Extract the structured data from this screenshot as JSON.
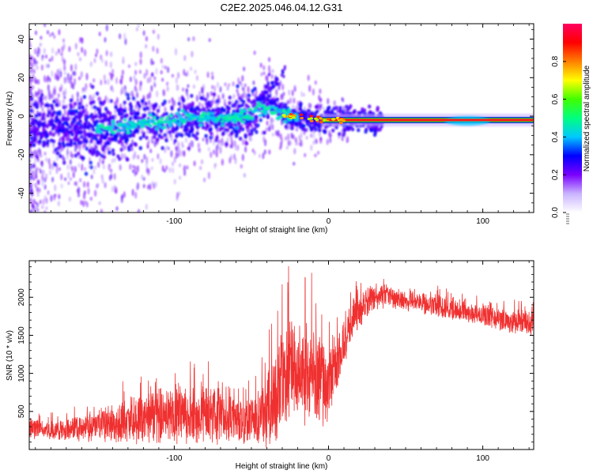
{
  "figure": {
    "title": "C2E2.2025.046.04.12.G31"
  },
  "chart_data": [
    {
      "type": "heatmap",
      "xlabel": "Height of straight line (km)",
      "ylabel": "Frequency (Hz)",
      "xlim": [
        -194,
        133
      ],
      "ylim": [
        -50,
        48
      ],
      "xticks": [
        -100,
        0,
        100
      ],
      "yticks": [
        -40,
        -20,
        0,
        20,
        40
      ],
      "xtick_labels": [
        "-100",
        "0",
        "100"
      ],
      "ytick_labels": [
        "-40",
        "-20",
        "0",
        "20",
        "40"
      ],
      "grid": false,
      "ridge_x": [
        -194,
        -175,
        -155,
        -135,
        -115,
        -100,
        -90,
        -80,
        -70,
        -60,
        -50,
        -45,
        -40,
        -35,
        -30,
        -25,
        -20,
        -10,
        0,
        10,
        30,
        60,
        80,
        90,
        100,
        110,
        133
      ],
      "ridge_y": [
        -6,
        -5,
        -7,
        -6,
        -3,
        -3,
        -1,
        -1,
        -2,
        -1,
        2,
        4,
        4,
        3,
        1,
        0,
        -1,
        -1,
        -2,
        -2,
        -2,
        -2,
        -2,
        -3,
        -2,
        -2,
        -2
      ],
      "stable_line": {
        "x_start": -5,
        "x_end": 133,
        "y": -2
      },
      "colorbar": {
        "label": "Normalized spectral amplitude",
        "range": [
          0,
          1
        ],
        "ticks": [
          0.0,
          0.2,
          0.4,
          0.6,
          0.8
        ],
        "tick_labels": [
          "0.0",
          "0.2",
          "0.4",
          "0.6",
          "0.8"
        ],
        "colors": [
          "#ffffff",
          "#c9b3ff",
          "#7a00ff",
          "#0000ff",
          "#00c8ff",
          "#00ff80",
          "#40ff00",
          "#ffff00",
          "#ff8000",
          "#ff0000",
          "#ff0060"
        ]
      }
    },
    {
      "type": "line",
      "xlabel": "Height of straight line (km)",
      "ylabel": "SNR (10 * v/v)",
      "xlim": [
        -194,
        133
      ],
      "ylim": [
        0,
        2480
      ],
      "xticks": [
        -100,
        0,
        100
      ],
      "yticks": [
        500,
        1000,
        1500,
        2000
      ],
      "xtick_labels": [
        "-100",
        "0",
        "100"
      ],
      "ytick_labels": [
        "500",
        "1000",
        "1500",
        "2000"
      ],
      "grid": false,
      "color": "#f03030",
      "envelope": {
        "x": [
          -194,
          -185,
          -175,
          -165,
          -155,
          -145,
          -135,
          -125,
          -115,
          -105,
          -95,
          -85,
          -75,
          -65,
          -55,
          -45,
          -38,
          -33,
          -28,
          -23,
          -18,
          -13,
          -8,
          -4,
          -1,
          3,
          8,
          13,
          18,
          23,
          28,
          33,
          38,
          45,
          55,
          65,
          75,
          85,
          95,
          105,
          115,
          125,
          133
        ],
        "mean": [
          300,
          250,
          260,
          280,
          300,
          330,
          370,
          400,
          420,
          440,
          460,
          460,
          440,
          400,
          380,
          420,
          550,
          780,
          950,
          1050,
          1080,
          1050,
          1000,
          900,
          800,
          1000,
          1300,
          1600,
          1800,
          1900,
          1970,
          2000,
          2020,
          1980,
          1950,
          1900,
          1870,
          1830,
          1790,
          1740,
          1700,
          1670,
          1640
        ],
        "amp": [
          170,
          130,
          150,
          180,
          220,
          260,
          300,
          350,
          380,
          420,
          430,
          420,
          420,
          350,
          330,
          400,
          620,
          780,
          850,
          820,
          800,
          780,
          750,
          650,
          500,
          480,
          420,
          350,
          280,
          240,
          200,
          180,
          170,
          160,
          160,
          160,
          160,
          160,
          160,
          170,
          170,
          170,
          180
        ]
      }
    }
  ]
}
